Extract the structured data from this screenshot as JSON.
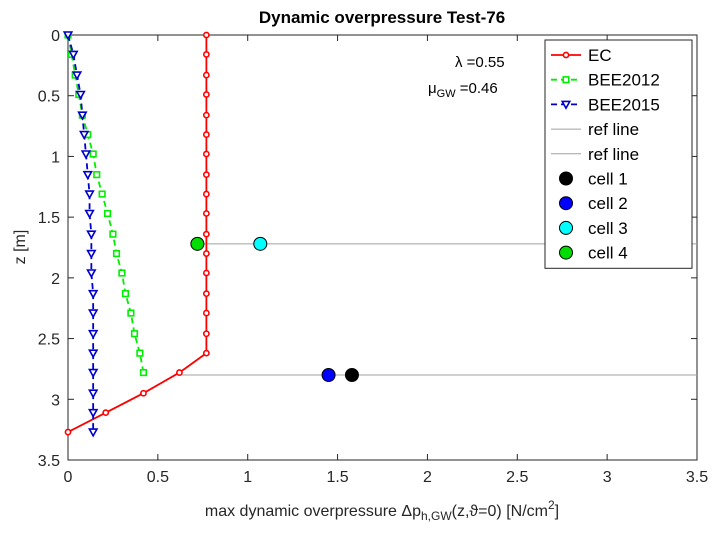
{
  "chart_data": {
    "type": "line",
    "title": "Dynamic overpressure Test-76",
    "xlabel": {
      "prefix": "max dynamic overpressure Δp",
      "sub": "h,GW",
      "mid": "(z,ϑ=0) [N/cm",
      "sup": "2",
      "suffix": "]"
    },
    "ylabel": "z [m]",
    "xlim": [
      0,
      3.5
    ],
    "ylim": [
      0,
      3.5
    ],
    "y_reversed": true,
    "grid": false,
    "x_ticks": [
      "0",
      "0.5",
      "1",
      "1.5",
      "2",
      "2.5",
      "3",
      "3.5"
    ],
    "y_ticks": [
      "0",
      "0.5",
      "1",
      "1.5",
      "2",
      "2.5",
      "3",
      "3.5"
    ],
    "annotations": {
      "lambda_label": "λ =0.55",
      "mu_label_prefix": "μ",
      "mu_label_sub": "GW",
      "mu_label_suffix": " =0.46"
    },
    "legend_position": "top-right",
    "series": [
      {
        "name": "EC",
        "color": "#ff0000",
        "style": "solid",
        "marker": "circle",
        "x": [
          0.77,
          0.77,
          0.77,
          0.77,
          0.77,
          0.77,
          0.77,
          0.77,
          0.77,
          0.77,
          0.77,
          0.77,
          0.77,
          0.77,
          0.77,
          0.77,
          0.77,
          0.62,
          0.42,
          0.21,
          0.0
        ],
        "y": [
          0.0,
          0.16,
          0.33,
          0.49,
          0.66,
          0.82,
          0.98,
          1.15,
          1.31,
          1.47,
          1.64,
          1.8,
          1.96,
          2.13,
          2.29,
          2.46,
          2.62,
          2.78,
          2.95,
          3.11,
          3.27
        ]
      },
      {
        "name": "BEE2012",
        "color": "#00ee00",
        "style": "dashed",
        "marker": "square",
        "x": [
          0.0,
          0.02,
          0.04,
          0.06,
          0.08,
          0.11,
          0.14,
          0.16,
          0.19,
          0.22,
          0.25,
          0.27,
          0.3,
          0.32,
          0.35,
          0.37,
          0.4,
          0.42
        ],
        "y": [
          0.0,
          0.16,
          0.33,
          0.49,
          0.66,
          0.82,
          0.98,
          1.15,
          1.31,
          1.47,
          1.64,
          1.8,
          1.96,
          2.13,
          2.29,
          2.46,
          2.62,
          2.78
        ]
      },
      {
        "name": "BEE2015",
        "color": "#0000cc",
        "style": "dashed",
        "marker": "triangle-down",
        "x": [
          0.0,
          0.03,
          0.05,
          0.07,
          0.08,
          0.09,
          0.1,
          0.11,
          0.12,
          0.12,
          0.13,
          0.13,
          0.13,
          0.14,
          0.14,
          0.14,
          0.14,
          0.14,
          0.14,
          0.14,
          0.14
        ],
        "y": [
          0.0,
          0.16,
          0.33,
          0.49,
          0.66,
          0.82,
          0.98,
          1.15,
          1.31,
          1.47,
          1.64,
          1.8,
          1.96,
          2.13,
          2.29,
          2.46,
          2.62,
          2.78,
          2.95,
          3.11,
          3.27
        ]
      }
    ],
    "ref_lines": [
      {
        "name": "ref line",
        "y": 1.72,
        "x_start": 0.72,
        "x_end": 3.5,
        "color": "#a0a0a0"
      },
      {
        "name": "ref line",
        "y": 2.8,
        "x_start": 0.62,
        "x_end": 3.5,
        "color": "#a0a0a0"
      }
    ],
    "points": [
      {
        "name": "cell 1",
        "x": 1.58,
        "y": 2.8,
        "color": "#000000"
      },
      {
        "name": "cell 2",
        "x": 1.45,
        "y": 2.8,
        "color": "#0000ff"
      },
      {
        "name": "cell 3",
        "x": 1.07,
        "y": 1.72,
        "color": "#00ffff"
      },
      {
        "name": "cell 4",
        "x": 0.72,
        "y": 1.72,
        "color": "#00dd00"
      }
    ]
  }
}
